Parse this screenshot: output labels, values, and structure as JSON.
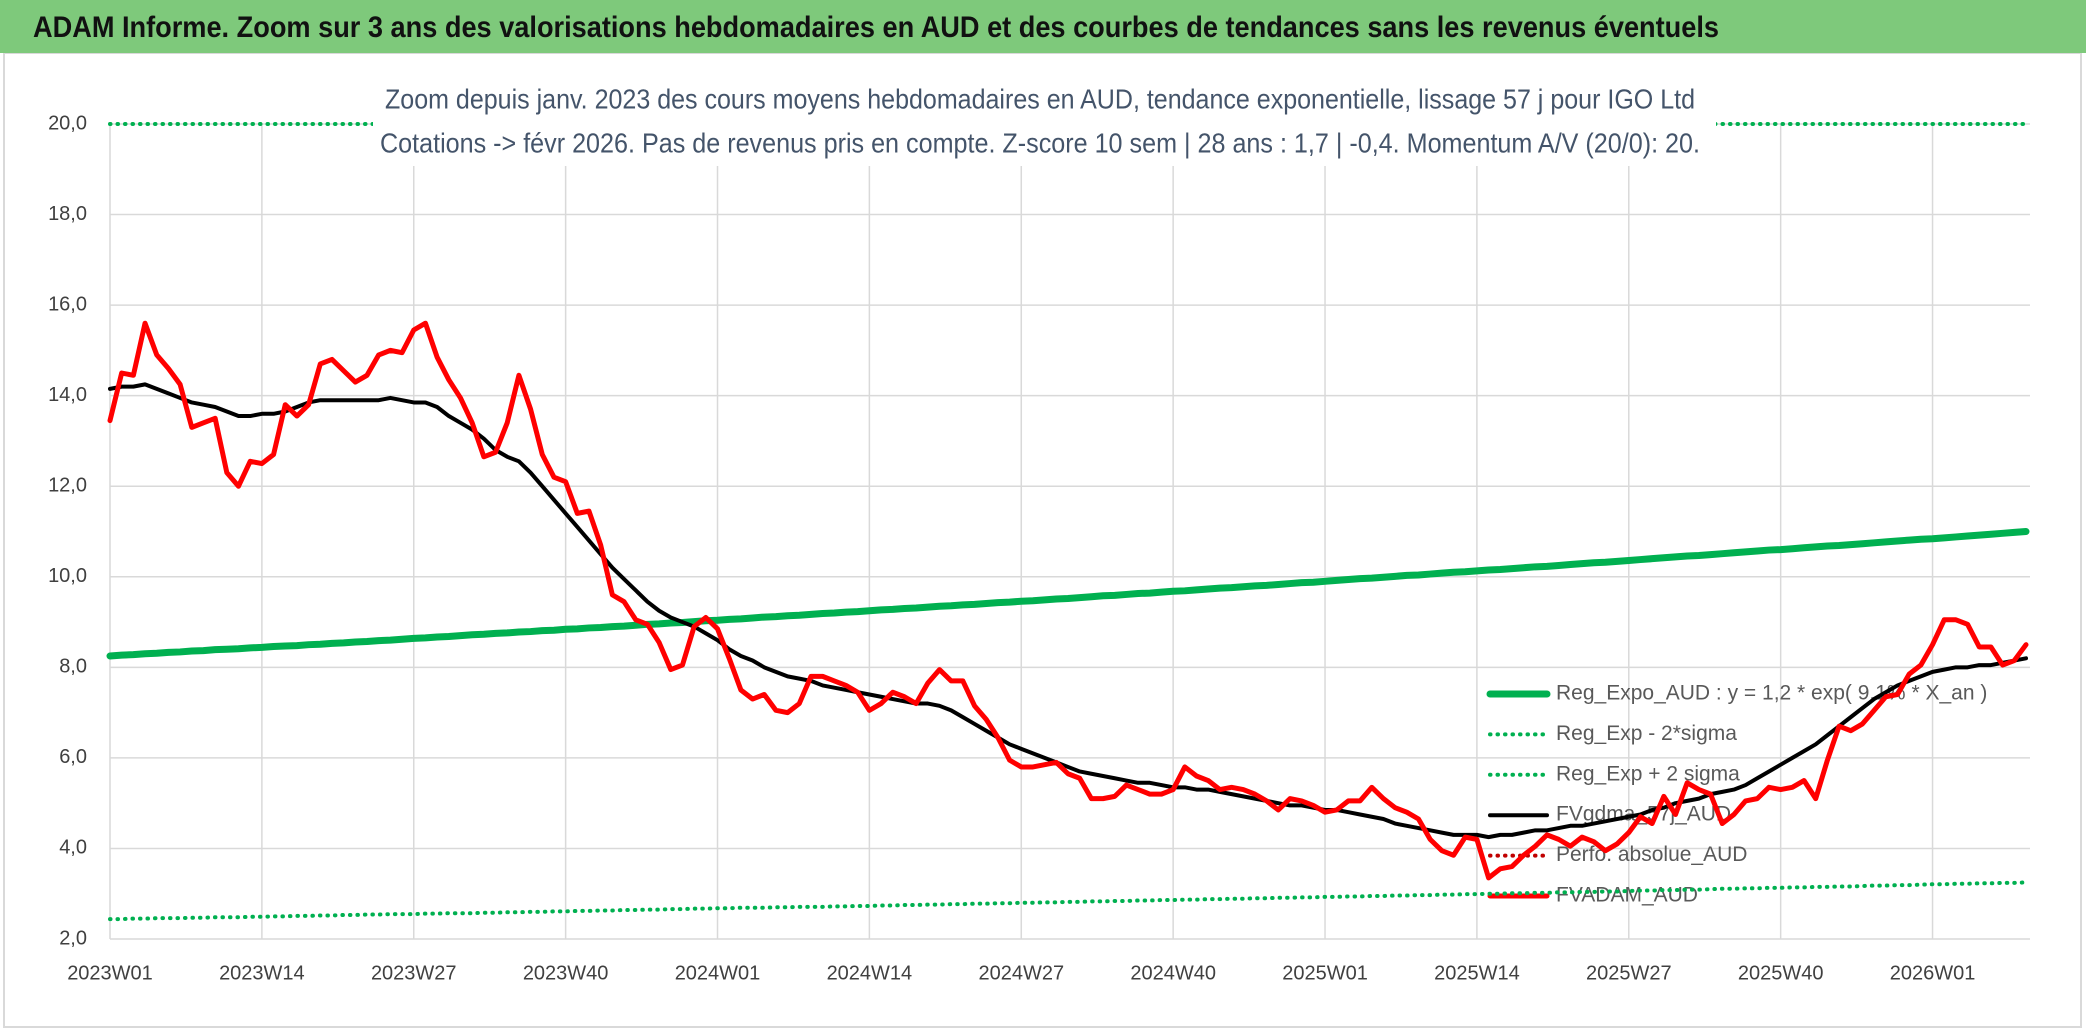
{
  "chart_data": {
    "type": "line",
    "title": "ADAM Informe. Zoom sur 3 ans des valorisations hebdomadaires en AUD et des courbes de tendances sans les revenus éventuels",
    "subtitle": [
      "Zoom depuis janv. 2023 des cours moyens hebdomadaires en AUD, tendance exponentielle, lissage 57 j pour IGO Ltd",
      "Cotations -> févr 2026. Pas de revenus pris en compte. Z-score 10 sem | 28 ans : 1,7 | -0,4. Momentum A/V (20/0): 20."
    ],
    "categories": [
      "2023W01",
      null,
      null,
      null,
      null,
      null,
      null,
      null,
      null,
      null,
      null,
      null,
      null,
      "2023W14",
      null,
      null,
      null,
      null,
      null,
      null,
      null,
      null,
      null,
      null,
      null,
      null,
      "2023W27",
      null,
      null,
      null,
      null,
      null,
      null,
      null,
      null,
      null,
      null,
      null,
      null,
      "2023W40",
      null,
      null,
      null,
      null,
      null,
      null,
      null,
      null,
      null,
      null,
      null,
      null,
      "2024W01",
      null,
      null,
      null,
      null,
      null,
      null,
      null,
      null,
      null,
      null,
      null,
      null,
      "2024W14",
      null,
      null,
      null,
      null,
      null,
      null,
      null,
      null,
      null,
      null,
      null,
      null,
      "2024W27",
      null,
      null,
      null,
      null,
      null,
      null,
      null,
      null,
      null,
      null,
      null,
      null,
      "2024W40",
      null,
      null,
      null,
      null,
      null,
      null,
      null,
      null,
      null,
      null,
      null,
      null,
      "2025W01",
      null,
      null,
      null,
      null,
      null,
      null,
      null,
      null,
      null,
      null,
      null,
      null,
      "2025W14",
      null,
      null,
      null,
      null,
      null,
      null,
      null,
      null,
      null,
      null,
      null,
      null,
      "2025W27",
      null,
      null,
      null,
      null,
      null,
      null,
      null,
      null,
      null,
      null,
      null,
      null,
      "2025W40",
      null,
      null,
      null,
      null,
      null,
      null,
      null,
      null,
      null,
      null,
      null,
      null,
      "2026W01",
      null,
      null,
      null,
      null,
      null,
      null,
      null,
      null
    ],
    "ylim": [
      2,
      20
    ],
    "yticks": [
      {
        "value": 2,
        "label": "2,0"
      },
      {
        "value": 4,
        "label": "4,0"
      },
      {
        "value": 6,
        "label": "6,0"
      },
      {
        "value": 8,
        "label": "8,0"
      },
      {
        "value": 10,
        "label": "10,0"
      },
      {
        "value": 12,
        "label": "12,0"
      },
      {
        "value": 14,
        "label": "14,0"
      },
      {
        "value": 16,
        "label": "16,0"
      },
      {
        "value": 18,
        "label": "18,0"
      },
      {
        "value": 20,
        "label": "20,0"
      }
    ],
    "grid": true,
    "legend": "lower right",
    "series": [
      {
        "name": "Reg_Expo_AUD : y = 1,2 * exp( 9,1% * X_an )",
        "color": "#00b050",
        "line_style": "solid",
        "values": [
          8.25,
          8.27,
          8.28,
          8.3,
          8.31,
          8.33,
          8.34,
          8.36,
          8.37,
          8.39,
          8.4,
          8.41,
          8.43,
          8.44,
          8.46,
          8.47,
          8.48,
          8.5,
          8.51,
          8.53,
          8.54,
          8.56,
          8.57,
          8.59,
          8.6,
          8.62,
          8.64,
          8.65,
          8.67,
          8.68,
          8.7,
          8.72,
          8.73,
          8.75,
          8.76,
          8.78,
          8.79,
          8.81,
          8.82,
          8.84,
          8.85,
          8.87,
          8.88,
          8.9,
          8.91,
          8.93,
          8.95,
          8.96,
          8.98,
          8.99,
          9.01,
          9.03,
          9.04,
          9.06,
          9.07,
          9.09,
          9.11,
          9.12,
          9.14,
          9.15,
          9.17,
          9.19,
          9.2,
          9.22,
          9.23,
          9.25,
          9.27,
          9.28,
          9.3,
          9.31,
          9.33,
          9.35,
          9.36,
          9.38,
          9.39,
          9.41,
          9.43,
          9.44,
          9.46,
          9.47,
          9.49,
          9.51,
          9.52,
          9.54,
          9.56,
          9.58,
          9.59,
          9.61,
          9.63,
          9.64,
          9.66,
          9.68,
          9.69,
          9.71,
          9.73,
          9.75,
          9.76,
          9.78,
          9.8,
          9.81,
          9.83,
          9.85,
          9.87,
          9.88,
          9.9,
          9.92,
          9.94,
          9.96,
          9.97,
          9.99,
          10.01,
          10.03,
          10.04,
          10.06,
          10.08,
          10.1,
          10.11,
          10.13,
          10.15,
          10.16,
          10.18,
          10.2,
          10.22,
          10.23,
          10.25,
          10.27,
          10.29,
          10.31,
          10.32,
          10.34,
          10.36,
          10.38,
          10.4,
          10.42,
          10.44,
          10.46,
          10.47,
          10.49,
          10.51,
          10.53,
          10.55,
          10.57,
          10.59,
          10.6,
          10.62,
          10.64,
          10.66,
          10.68,
          10.69,
          10.71,
          10.73,
          10.75,
          10.77,
          10.79,
          10.81,
          10.83,
          10.84,
          10.86,
          10.88,
          10.9,
          10.92,
          10.94,
          10.96,
          10.98,
          11.0
        ]
      },
      {
        "name": "Reg_Exp - 2*sigma",
        "color": "#00b050",
        "line_style": "dotted",
        "values": [
          2.44,
          2.44,
          2.45,
          2.45,
          2.46,
          2.46,
          2.46,
          2.47,
          2.47,
          2.48,
          2.48,
          2.48,
          2.49,
          2.49,
          2.5,
          2.5,
          2.51,
          2.51,
          2.52,
          2.52,
          2.53,
          2.53,
          2.54,
          2.54,
          2.55,
          2.55,
          2.55,
          2.56,
          2.56,
          2.57,
          2.57,
          2.57,
          2.58,
          2.58,
          2.59,
          2.59,
          2.6,
          2.6,
          2.61,
          2.61,
          2.62,
          2.62,
          2.63,
          2.63,
          2.64,
          2.64,
          2.65,
          2.65,
          2.66,
          2.66,
          2.67,
          2.67,
          2.68,
          2.68,
          2.69,
          2.69,
          2.69,
          2.7,
          2.7,
          2.71,
          2.71,
          2.71,
          2.72,
          2.72,
          2.73,
          2.73,
          2.74,
          2.74,
          2.75,
          2.75,
          2.76,
          2.76,
          2.77,
          2.77,
          2.78,
          2.78,
          2.79,
          2.79,
          2.8,
          2.8,
          2.81,
          2.81,
          2.82,
          2.82,
          2.83,
          2.83,
          2.84,
          2.84,
          2.85,
          2.85,
          2.86,
          2.86,
          2.87,
          2.87,
          2.88,
          2.88,
          2.89,
          2.89,
          2.9,
          2.9,
          2.91,
          2.91,
          2.92,
          2.92,
          2.93,
          2.93,
          2.94,
          2.94,
          2.95,
          2.95,
          2.96,
          2.96,
          2.97,
          2.97,
          2.98,
          2.98,
          2.99,
          2.99,
          3.0,
          3.0,
          3.01,
          3.01,
          3.02,
          3.02,
          3.03,
          3.03,
          3.04,
          3.04,
          3.05,
          3.05,
          3.06,
          3.07,
          3.07,
          3.08,
          3.08,
          3.09,
          3.09,
          3.1,
          3.11,
          3.11,
          3.12,
          3.12,
          3.13,
          3.13,
          3.14,
          3.14,
          3.15,
          3.15,
          3.16,
          3.16,
          3.17,
          3.18,
          3.18,
          3.19,
          3.19,
          3.2,
          3.21,
          3.21,
          3.22,
          3.22,
          3.23,
          3.23,
          3.24,
          3.24,
          3.25
        ]
      },
      {
        "name": "Reg_Exp + 2 sigma",
        "color": "#00b050",
        "line_style": "dotted",
        "values": [
          20,
          20,
          20,
          20,
          20,
          20,
          20,
          20,
          20,
          20,
          20,
          20,
          20,
          20,
          20,
          20,
          20,
          20,
          20,
          20,
          20,
          20,
          20,
          20,
          20,
          20,
          20,
          20,
          20,
          20,
          20,
          20,
          20,
          20,
          20,
          20,
          20,
          20,
          20,
          20,
          20,
          20,
          20,
          20,
          20,
          20,
          20,
          20,
          20,
          20,
          20,
          20,
          20,
          20,
          20,
          20,
          20,
          20,
          20,
          20,
          20,
          20,
          20,
          20,
          20,
          20,
          20,
          20,
          20,
          20,
          20,
          20,
          20,
          20,
          20,
          20,
          20,
          20,
          20,
          20,
          20,
          20,
          20,
          20,
          20,
          20,
          20,
          20,
          20,
          20,
          20,
          20,
          20,
          20,
          20,
          20,
          20,
          20,
          20,
          20,
          20,
          20,
          20,
          20,
          20,
          20,
          20,
          20,
          20,
          20,
          20,
          20,
          20,
          20,
          20,
          20,
          20,
          20,
          20,
          20,
          20,
          20,
          20,
          20,
          20,
          20,
          20,
          20,
          20,
          20,
          20,
          20,
          20,
          20,
          20,
          20,
          20,
          20,
          20,
          20,
          20,
          20,
          20,
          20,
          20,
          20,
          20,
          20,
          20,
          20,
          20,
          20,
          20,
          20,
          20,
          20,
          20,
          20,
          20,
          20,
          20,
          20,
          20,
          20,
          20
        ]
      },
      {
        "name": "FVgdma_57j_AUD",
        "color": "#000000",
        "line_style": "solid",
        "values": [
          14.15,
          14.2,
          14.2,
          14.25,
          14.15,
          14.05,
          13.95,
          13.85,
          13.8,
          13.75,
          13.65,
          13.55,
          13.55,
          13.6,
          13.6,
          13.65,
          13.75,
          13.85,
          13.9,
          13.9,
          13.9,
          13.9,
          13.9,
          13.9,
          13.95,
          13.9,
          13.85,
          13.85,
          13.75,
          13.55,
          13.4,
          13.25,
          13.05,
          12.8,
          12.65,
          12.55,
          12.3,
          12.0,
          11.7,
          11.4,
          11.1,
          10.8,
          10.5,
          10.2,
          9.95,
          9.7,
          9.45,
          9.25,
          9.1,
          9.0,
          8.9,
          8.75,
          8.6,
          8.4,
          8.25,
          8.15,
          8.0,
          7.9,
          7.8,
          7.75,
          7.7,
          7.6,
          7.55,
          7.5,
          7.45,
          7.4,
          7.35,
          7.3,
          7.25,
          7.2,
          7.2,
          7.15,
          7.05,
          6.9,
          6.75,
          6.6,
          6.45,
          6.3,
          6.2,
          6.1,
          6.0,
          5.9,
          5.8,
          5.7,
          5.65,
          5.6,
          5.55,
          5.5,
          5.45,
          5.45,
          5.4,
          5.35,
          5.35,
          5.3,
          5.3,
          5.25,
          5.2,
          5.15,
          5.1,
          5.05,
          5.0,
          4.95,
          4.95,
          4.9,
          4.85,
          4.85,
          4.8,
          4.75,
          4.7,
          4.65,
          4.55,
          4.5,
          4.45,
          4.4,
          4.35,
          4.3,
          4.3,
          4.3,
          4.25,
          4.3,
          4.3,
          4.35,
          4.4,
          4.4,
          4.45,
          4.5,
          4.5,
          4.55,
          4.6,
          4.65,
          4.7,
          4.75,
          4.85,
          4.9,
          5.0,
          5.05,
          5.1,
          5.2,
          5.25,
          5.3,
          5.4,
          5.55,
          5.7,
          5.85,
          6.0,
          6.15,
          6.3,
          6.5,
          6.7,
          6.9,
          7.1,
          7.3,
          7.45,
          7.6,
          7.7,
          7.8,
          7.9,
          7.95,
          8.0,
          8.0,
          8.05,
          8.05,
          8.1,
          8.15,
          8.2
        ]
      },
      {
        "name": "Perfo. absolue_AUD",
        "color": "#c00000",
        "line_style": "dotted",
        "values": [
          null,
          null,
          null,
          null,
          null,
          null,
          null,
          null,
          null,
          null,
          null,
          null,
          null,
          null,
          null,
          null,
          null,
          null,
          null,
          null,
          null,
          null,
          null,
          null,
          null,
          null,
          null,
          null,
          null,
          null,
          null,
          null,
          null,
          null,
          null,
          null,
          null,
          null,
          null,
          null,
          null,
          null,
          null,
          null,
          null,
          null,
          null,
          null,
          null,
          null,
          null,
          null,
          null,
          null,
          null,
          null,
          null,
          null,
          null,
          null,
          null,
          null,
          null,
          null,
          null,
          null,
          null,
          null,
          null,
          null,
          null,
          null,
          null,
          null,
          null,
          null,
          null,
          null,
          null,
          null,
          null,
          null,
          null,
          null,
          null,
          null,
          null,
          null,
          null,
          null,
          null,
          null,
          null,
          null,
          null,
          null,
          null,
          null,
          null,
          null,
          null,
          null,
          null,
          null,
          null,
          null,
          null,
          null,
          null,
          null,
          null,
          null,
          null,
          null,
          null,
          null,
          null,
          null,
          null,
          null,
          null,
          null,
          null,
          null,
          null,
          null,
          null,
          null,
          null,
          null,
          null,
          null,
          null,
          null,
          null,
          null,
          null,
          null,
          null,
          null,
          null,
          null,
          null,
          null,
          null,
          null,
          null,
          null,
          null,
          null,
          null,
          null,
          null,
          null,
          null,
          null,
          null,
          null,
          null,
          null,
          null,
          null,
          null,
          null,
          null
        ]
      },
      {
        "name": "FVADAM_AUD",
        "color": "#ff0000",
        "line_style": "solid",
        "values": [
          13.45,
          14.5,
          14.45,
          15.6,
          14.9,
          14.6,
          14.25,
          13.3,
          13.4,
          13.5,
          12.3,
          12.0,
          12.55,
          12.5,
          12.7,
          13.8,
          13.55,
          13.8,
          14.7,
          14.8,
          14.55,
          14.3,
          14.45,
          14.9,
          15.0,
          14.95,
          15.45,
          15.6,
          14.85,
          14.35,
          13.95,
          13.4,
          12.65,
          12.75,
          13.4,
          14.45,
          13.7,
          12.7,
          12.2,
          12.1,
          11.4,
          11.45,
          10.7,
          9.6,
          9.45,
          9.05,
          8.95,
          8.55,
          7.95,
          8.05,
          8.9,
          9.1,
          8.85,
          8.2,
          7.5,
          7.3,
          7.4,
          7.05,
          7.0,
          7.2,
          7.8,
          7.8,
          7.7,
          7.6,
          7.45,
          7.05,
          7.2,
          7.45,
          7.35,
          7.2,
          7.65,
          7.95,
          7.7,
          7.7,
          7.15,
          6.85,
          6.45,
          5.95,
          5.8,
          5.8,
          5.85,
          5.9,
          5.65,
          5.55,
          5.1,
          5.1,
          5.15,
          5.4,
          5.3,
          5.2,
          5.2,
          5.3,
          5.8,
          5.6,
          5.5,
          5.3,
          5.35,
          5.3,
          5.2,
          5.05,
          4.85,
          5.1,
          5.05,
          4.95,
          4.8,
          4.85,
          5.05,
          5.05,
          5.35,
          5.1,
          4.9,
          4.8,
          4.65,
          4.2,
          3.95,
          3.85,
          4.25,
          4.2,
          3.35,
          3.55,
          3.6,
          3.85,
          4.05,
          4.3,
          4.2,
          4.05,
          4.25,
          4.15,
          3.95,
          4.1,
          4.35,
          4.7,
          4.55,
          5.15,
          4.75,
          5.45,
          5.3,
          5.2,
          4.55,
          4.75,
          5.05,
          5.1,
          5.35,
          5.3,
          5.35,
          5.5,
          5.1,
          5.95,
          6.7,
          6.6,
          6.75,
          7.05,
          7.35,
          7.4,
          7.85,
          8.05,
          8.5,
          9.05,
          9.05,
          8.95,
          8.45,
          8.45,
          8.05,
          8.15,
          8.5
        ]
      }
    ]
  }
}
